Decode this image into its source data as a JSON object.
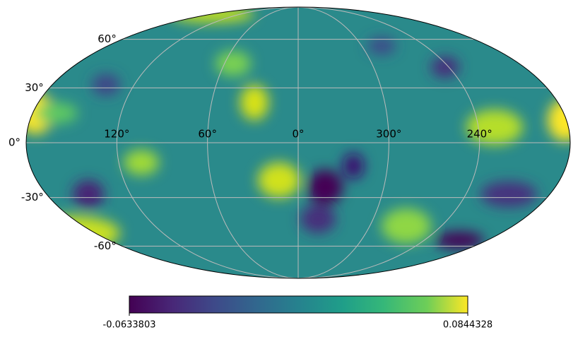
{
  "chart_data": {
    "type": "mollweide",
    "cmap": "viridis",
    "grid": true,
    "xticks": [
      {
        "value": 120,
        "label": "120°"
      },
      {
        "value": 60,
        "label": "60°"
      },
      {
        "value": 0,
        "label": "0°"
      },
      {
        "value": 300,
        "label": "300°"
      },
      {
        "value": 240,
        "label": "240°"
      }
    ],
    "yticks": [
      {
        "value": 60,
        "label": "60°"
      },
      {
        "value": 30,
        "label": "30°"
      },
      {
        "value": 0,
        "label": "0°"
      },
      {
        "value": -30,
        "label": "-30°"
      },
      {
        "value": -60,
        "label": "-60°"
      }
    ],
    "clim": [
      -0.0633803,
      0.0844328
    ],
    "cticks": [
      -0.0633803,
      0.0844328
    ]
  }
}
